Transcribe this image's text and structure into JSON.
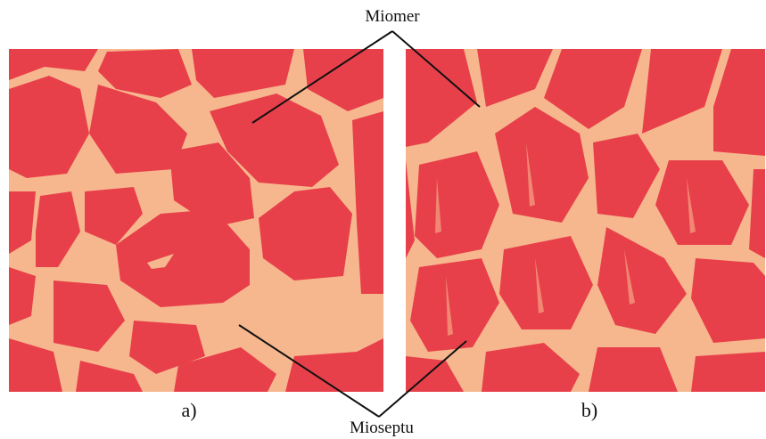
{
  "annotations": {
    "top": "Miomer",
    "bottom": "Mioseptu"
  },
  "panels": [
    {
      "label": "a)"
    },
    {
      "label": "b)"
    }
  ]
}
